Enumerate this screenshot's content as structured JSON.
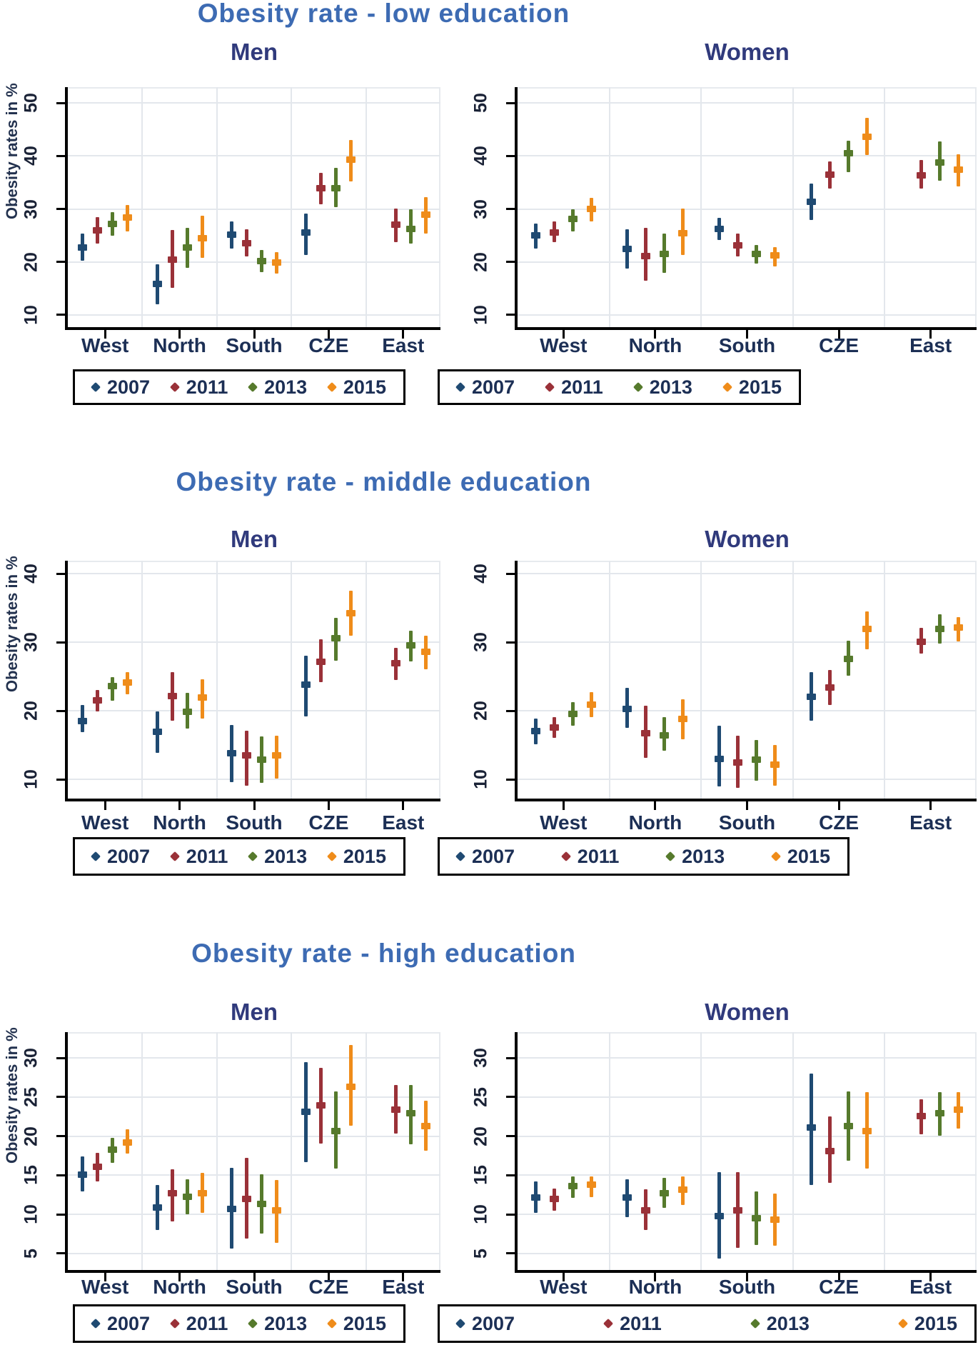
{
  "chart_data": [
    {
      "type": "pointrange-scatter",
      "title": "Obesity rate - low education",
      "subtitle": "Men",
      "ylabel": "Obesity rates in %",
      "categories": [
        "West",
        "North",
        "South",
        "CZE",
        "East"
      ],
      "yticks": [
        10,
        20,
        30,
        40,
        50
      ],
      "ylim": [
        7.7,
        53
      ],
      "grid": true,
      "legend_position": "below",
      "legend_labels": [
        "2007",
        "2011",
        "2013",
        "2015"
      ],
      "series": [
        {
          "name": "2007",
          "color": "#1f4a72",
          "points": [
            [
              22.7,
              20.2,
              25.3
            ],
            [
              15.8,
              12.0,
              19.6
            ],
            [
              25.1,
              22.5,
              27.6
            ],
            [
              25.6,
              21.3,
              29.2
            ],
            null
          ]
        },
        {
          "name": "2011",
          "color": "#9a3138",
          "points": [
            [
              26.0,
              23.5,
              28.5
            ],
            [
              20.4,
              15.1,
              26.1
            ],
            [
              23.5,
              21.0,
              26.2
            ],
            [
              33.9,
              30.9,
              36.8
            ],
            [
              27.0,
              23.7,
              30.1
            ]
          ]
        },
        {
          "name": "2013",
          "color": "#567a2c",
          "points": [
            [
              27.2,
              25.0,
              29.4
            ],
            [
              22.7,
              18.9,
              26.4
            ],
            [
              20.2,
              18.1,
              22.3
            ],
            [
              33.9,
              30.3,
              37.7
            ],
            [
              26.3,
              23.5,
              30.0
            ]
          ]
        },
        {
          "name": "2015",
          "color": "#ef8c1a",
          "points": [
            [
              28.4,
              25.8,
              30.7
            ],
            [
              24.5,
              20.8,
              28.7
            ],
            [
              19.9,
              17.8,
              21.9
            ],
            [
              39.3,
              35.2,
              43.0
            ],
            [
              28.9,
              25.4,
              32.3
            ]
          ]
        }
      ]
    },
    {
      "type": "pointrange-scatter",
      "title": "Obesity rate - low education",
      "subtitle": "Women",
      "ylabel": "Obesity rates in %",
      "categories": [
        "West",
        "North",
        "South",
        "CZE",
        "East"
      ],
      "yticks": [
        10,
        20,
        30,
        40,
        50
      ],
      "ylim": [
        7.7,
        53
      ],
      "grid": true,
      "legend_position": "below",
      "legend_labels": [
        "2007",
        "2011",
        "2013",
        "2015"
      ],
      "series": [
        {
          "name": "2007",
          "color": "#1f4a72",
          "points": [
            [
              25.0,
              22.5,
              27.2
            ],
            [
              22.4,
              18.8,
              26.2
            ],
            [
              26.2,
              24.1,
              28.3
            ],
            [
              31.3,
              27.9,
              34.8
            ],
            null
          ]
        },
        {
          "name": "2011",
          "color": "#9a3138",
          "points": [
            [
              25.6,
              23.7,
              27.7
            ],
            [
              21.1,
              16.4,
              26.4
            ],
            [
              23.1,
              21.1,
              25.3
            ],
            [
              36.5,
              33.9,
              39.0
            ],
            [
              36.3,
              33.9,
              39.3
            ]
          ]
        },
        {
          "name": "2013",
          "color": "#567a2c",
          "points": [
            [
              28.1,
              25.8,
              30.0
            ],
            [
              21.5,
              17.9,
              25.3
            ],
            [
              21.5,
              19.7,
              23.2
            ],
            [
              40.5,
              37.0,
              42.9
            ],
            [
              38.8,
              35.4,
              42.8
            ]
          ]
        },
        {
          "name": "2015",
          "color": "#ef8c1a",
          "points": [
            [
              30.0,
              27.7,
              32.1
            ],
            [
              25.4,
              21.3,
              30.1
            ],
            [
              21.2,
              19.2,
              22.8
            ],
            [
              43.6,
              40.2,
              47.2
            ],
            [
              37.4,
              34.2,
              40.3
            ]
          ]
        }
      ]
    },
    {
      "type": "pointrange-scatter",
      "title": "Obesity rate - middle education",
      "subtitle": "Men",
      "ylabel": "Obesity rates in %",
      "categories": [
        "West",
        "North",
        "South",
        "CZE",
        "East"
      ],
      "yticks": [
        10,
        20,
        30,
        40
      ],
      "ylim": [
        7.2,
        41.9
      ],
      "grid": true,
      "legend_position": "below",
      "legend_labels": [
        "2007",
        "2011",
        "2013",
        "2015"
      ],
      "series": [
        {
          "name": "2007",
          "color": "#1f4a72",
          "points": [
            [
              18.5,
              16.9,
              20.8
            ],
            [
              16.9,
              13.9,
              19.9
            ],
            [
              13.8,
              9.6,
              17.9
            ],
            [
              23.8,
              19.2,
              28.0
            ],
            null
          ]
        },
        {
          "name": "2011",
          "color": "#9a3138",
          "points": [
            [
              21.5,
              19.9,
              23.0
            ],
            [
              22.2,
              18.6,
              25.6
            ],
            [
              13.5,
              9.1,
              17.1
            ],
            [
              27.2,
              24.2,
              30.4
            ],
            [
              26.9,
              24.5,
              29.2
            ]
          ]
        },
        {
          "name": "2013",
          "color": "#567a2c",
          "points": [
            [
              23.6,
              21.5,
              24.9
            ],
            [
              19.9,
              17.4,
              22.6
            ],
            [
              12.9,
              9.5,
              16.3
            ],
            [
              30.6,
              27.3,
              33.6
            ],
            [
              29.5,
              27.2,
              31.7
            ]
          ]
        },
        {
          "name": "2015",
          "color": "#ef8c1a",
          "points": [
            [
              24.1,
              22.4,
              25.6
            ],
            [
              21.9,
              18.9,
              24.6
            ],
            [
              13.5,
              10.1,
              16.4
            ],
            [
              34.2,
              31.0,
              37.5
            ],
            [
              28.6,
              26.1,
              31.0
            ]
          ]
        }
      ]
    },
    {
      "type": "pointrange-scatter",
      "title": "Obesity rate - middle education",
      "subtitle": "Women",
      "ylabel": "Obesity rates in %",
      "categories": [
        "West",
        "North",
        "South",
        "CZE",
        "East"
      ],
      "yticks": [
        10,
        20,
        30,
        40
      ],
      "ylim": [
        7.2,
        41.9
      ],
      "grid": true,
      "legend_position": "below",
      "legend_labels": [
        "2007",
        "2011",
        "2013",
        "2015"
      ],
      "series": [
        {
          "name": "2007",
          "color": "#1f4a72",
          "points": [
            [
              17.0,
              15.1,
              18.9
            ],
            [
              20.3,
              17.5,
              23.4
            ],
            [
              13.0,
              9.0,
              17.8
            ],
            [
              22.1,
              18.6,
              25.6
            ],
            null
          ]
        },
        {
          "name": "2011",
          "color": "#9a3138",
          "points": [
            [
              17.6,
              16.1,
              19.1
            ],
            [
              16.7,
              13.1,
              20.7
            ],
            [
              12.5,
              8.8,
              16.4
            ],
            [
              23.4,
              20.8,
              26.0
            ],
            [
              30.1,
              28.3,
              32.1
            ]
          ]
        },
        {
          "name": "2013",
          "color": "#567a2c",
          "points": [
            [
              19.5,
              17.8,
              21.3
            ],
            [
              16.4,
              14.2,
              19.1
            ],
            [
              12.9,
              9.8,
              15.7
            ],
            [
              27.6,
              25.1,
              30.2
            ],
            [
              31.9,
              29.8,
              34.1
            ]
          ]
        },
        {
          "name": "2015",
          "color": "#ef8c1a",
          "points": [
            [
              20.9,
              19.1,
              22.7
            ],
            [
              18.8,
              15.9,
              21.7
            ],
            [
              12.1,
              9.1,
              15.0
            ],
            [
              31.9,
              29.0,
              34.5
            ],
            [
              32.2,
              30.1,
              33.7
            ]
          ]
        }
      ]
    },
    {
      "type": "pointrange-scatter",
      "title": "Obesity rate - high education",
      "subtitle": "Men",
      "ylabel": "Obesity rates in %",
      "categories": [
        "West",
        "North",
        "South",
        "CZE",
        "East"
      ],
      "yticks": [
        5,
        10,
        15,
        20,
        25,
        30
      ],
      "ylim": [
        2.9,
        33.3
      ],
      "grid": true,
      "legend_position": "below",
      "legend_labels": [
        "2007",
        "2011",
        "2013",
        "2015"
      ],
      "series": [
        {
          "name": "2007",
          "color": "#1f4a72",
          "points": [
            [
              15.1,
              12.9,
              17.4
            ],
            [
              10.9,
              8.0,
              13.8
            ],
            [
              10.7,
              5.6,
              16.0
            ],
            [
              23.1,
              16.7,
              29.5
            ],
            null
          ]
        },
        {
          "name": "2011",
          "color": "#9a3138",
          "points": [
            [
              16.1,
              14.2,
              17.9
            ],
            [
              12.7,
              9.1,
              15.8
            ],
            [
              12.0,
              6.9,
              17.2
            ],
            [
              23.9,
              19.1,
              28.7
            ],
            [
              23.4,
              20.3,
              26.5
            ]
          ]
        },
        {
          "name": "2013",
          "color": "#567a2c",
          "points": [
            [
              18.3,
              16.6,
              19.8
            ],
            [
              12.3,
              10.0,
              14.5
            ],
            [
              11.3,
              7.6,
              15.1
            ],
            [
              20.7,
              15.9,
              25.7
            ],
            [
              22.9,
              19.0,
              26.5
            ]
          ]
        },
        {
          "name": "2015",
          "color": "#ef8c1a",
          "points": [
            [
              19.2,
              17.8,
              20.9
            ],
            [
              12.7,
              10.2,
              15.3
            ],
            [
              10.5,
              6.4,
              14.4
            ],
            [
              26.3,
              21.3,
              31.7
            ],
            [
              21.3,
              18.1,
              24.5
            ]
          ]
        }
      ]
    },
    {
      "type": "pointrange-scatter",
      "title": "Obesity rate - high education",
      "subtitle": "Women",
      "ylabel": "Obesity rates in %",
      "categories": [
        "West",
        "North",
        "South",
        "CZE",
        "East"
      ],
      "yticks": [
        5,
        10,
        15,
        20,
        25,
        30
      ],
      "ylim": [
        2.9,
        33.3
      ],
      "grid": true,
      "legend_position": "below",
      "legend_labels": [
        "2007",
        "2011",
        "2013",
        "2015"
      ],
      "series": [
        {
          "name": "2007",
          "color": "#1f4a72",
          "points": [
            [
              12.2,
              10.2,
              14.2
            ],
            [
              12.2,
              9.7,
              14.5
            ],
            [
              9.8,
              4.4,
              15.4
            ],
            [
              21.1,
              13.8,
              28.0
            ],
            null
          ]
        },
        {
          "name": "2011",
          "color": "#9a3138",
          "points": [
            [
              12.0,
              10.5,
              13.3
            ],
            [
              10.5,
              8.0,
              13.2
            ],
            [
              10.5,
              5.7,
              15.4
            ],
            [
              18.1,
              14.0,
              22.5
            ],
            [
              22.6,
              20.2,
              24.7
            ]
          ]
        },
        {
          "name": "2013",
          "color": "#567a2c",
          "points": [
            [
              13.6,
              12.1,
              14.9
            ],
            [
              12.7,
              10.8,
              14.7
            ],
            [
              9.5,
              6.1,
              12.9
            ],
            [
              21.3,
              16.9,
              25.7
            ],
            [
              22.9,
              20.1,
              25.6
            ]
          ]
        },
        {
          "name": "2015",
          "color": "#ef8c1a",
          "points": [
            [
              13.8,
              12.2,
              14.9
            ],
            [
              13.2,
              11.2,
              14.9
            ],
            [
              9.3,
              6.0,
              12.7
            ],
            [
              20.7,
              15.9,
              25.6
            ],
            [
              23.4,
              21.0,
              25.6
            ]
          ]
        }
      ]
    }
  ]
}
